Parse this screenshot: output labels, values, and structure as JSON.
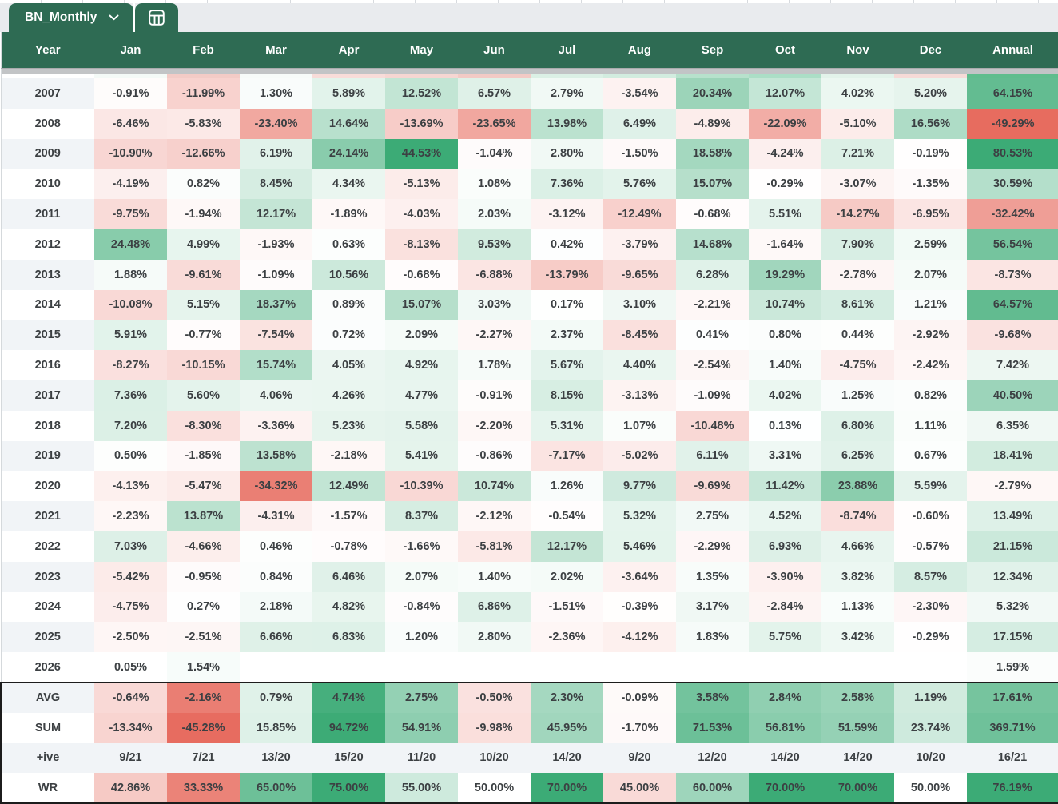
{
  "tab_bar": {
    "sheet_tab": {
      "label": "BN_Monthly",
      "dropdown_icon": "chevron-down-icon"
    },
    "calculator_tab": {
      "icon": "calculator-icon"
    }
  },
  "colors": {
    "header_green": "#2e6b53",
    "positive_end": "#3cab76",
    "negative_end": "#e76a5d",
    "row_stripe": "#f1f4f7",
    "divider_gray": "#c2c4c6",
    "cell_text": "#3c4043",
    "summary_outline": "#1c1c1c"
  },
  "table": {
    "columns": [
      "Year",
      "Jan",
      "Feb",
      "Mar",
      "Apr",
      "May",
      "Jun",
      "Jul",
      "Aug",
      "Sep",
      "Oct",
      "Nov",
      "Dec",
      "Annual"
    ],
    "partial_row_colors": [
      "#ffffff",
      "#f4faf7",
      "#f3cbc6",
      "#f7fbf9",
      "#f8dcd9",
      "#f6d6d2",
      "#f2cac5",
      "#dbf0e5",
      "#d2ecdf",
      "#b7e1cc",
      "#abdec6",
      "#e2f3ea",
      "#f6dad7",
      "#5fbd8d"
    ],
    "rows": [
      {
        "label": "2007",
        "type": "year",
        "cells": [
          "-0.91%",
          "-11.99%",
          "1.30%",
          "5.89%",
          "12.52%",
          "6.57%",
          "2.79%",
          "-3.54%",
          "20.34%",
          "12.07%",
          "4.02%",
          "5.20%",
          "64.15%"
        ]
      },
      {
        "label": "2008",
        "type": "year",
        "cells": [
          "-6.46%",
          "-5.83%",
          "-23.40%",
          "14.64%",
          "-13.69%",
          "-23.65%",
          "13.98%",
          "6.49%",
          "-4.89%",
          "-22.09%",
          "-5.10%",
          "16.56%",
          "-49.29%"
        ]
      },
      {
        "label": "2009",
        "type": "year",
        "cells": [
          "-10.90%",
          "-12.66%",
          "6.19%",
          "24.14%",
          "44.53%",
          "-1.04%",
          "2.80%",
          "-1.50%",
          "18.58%",
          "-4.24%",
          "7.21%",
          "-0.19%",
          "80.53%"
        ]
      },
      {
        "label": "2010",
        "type": "year",
        "cells": [
          "-4.19%",
          "0.82%",
          "8.45%",
          "4.34%",
          "-5.13%",
          "1.08%",
          "7.36%",
          "5.76%",
          "15.07%",
          "-0.29%",
          "-3.07%",
          "-1.35%",
          "30.59%"
        ]
      },
      {
        "label": "2011",
        "type": "year",
        "cells": [
          "-9.75%",
          "-1.94%",
          "12.17%",
          "-1.89%",
          "-4.03%",
          "2.03%",
          "-3.12%",
          "-12.49%",
          "-0.68%",
          "5.51%",
          "-14.27%",
          "-6.95%",
          "-32.42%"
        ]
      },
      {
        "label": "2012",
        "type": "year",
        "cells": [
          "24.48%",
          "4.99%",
          "-1.93%",
          "0.63%",
          "-8.13%",
          "9.53%",
          "0.42%",
          "-3.79%",
          "14.68%",
          "-1.64%",
          "7.90%",
          "2.59%",
          "56.54%"
        ]
      },
      {
        "label": "2013",
        "type": "year",
        "cells": [
          "1.88%",
          "-9.61%",
          "-1.09%",
          "10.56%",
          "-0.68%",
          "-6.88%",
          "-13.79%",
          "-9.65%",
          "6.28%",
          "19.29%",
          "-2.78%",
          "2.07%",
          "-8.73%"
        ]
      },
      {
        "label": "2014",
        "type": "year",
        "cells": [
          "-10.08%",
          "5.15%",
          "18.37%",
          "0.89%",
          "15.07%",
          "3.03%",
          "0.17%",
          "3.10%",
          "-2.21%",
          "10.74%",
          "8.61%",
          "1.21%",
          "64.57%"
        ]
      },
      {
        "label": "2015",
        "type": "year",
        "cells": [
          "5.91%",
          "-0.77%",
          "-7.54%",
          "0.72%",
          "2.09%",
          "-2.27%",
          "2.37%",
          "-8.45%",
          "0.41%",
          "0.80%",
          "0.44%",
          "-2.92%",
          "-9.68%"
        ]
      },
      {
        "label": "2016",
        "type": "year",
        "cells": [
          "-8.27%",
          "-10.15%",
          "15.74%",
          "4.05%",
          "4.92%",
          "1.78%",
          "5.67%",
          "4.40%",
          "-2.54%",
          "1.40%",
          "-4.75%",
          "-2.42%",
          "7.42%"
        ]
      },
      {
        "label": "2017",
        "type": "year",
        "cells": [
          "7.36%",
          "5.60%",
          "4.06%",
          "4.26%",
          "4.77%",
          "-0.91%",
          "8.15%",
          "-3.13%",
          "-1.09%",
          "4.02%",
          "1.25%",
          "0.82%",
          "40.50%"
        ]
      },
      {
        "label": "2018",
        "type": "year",
        "cells": [
          "7.20%",
          "-8.30%",
          "-3.36%",
          "5.23%",
          "5.58%",
          "-2.20%",
          "5.31%",
          "1.07%",
          "-10.48%",
          "0.13%",
          "6.80%",
          "1.11%",
          "6.35%"
        ]
      },
      {
        "label": "2019",
        "type": "year",
        "cells": [
          "0.50%",
          "-1.85%",
          "13.58%",
          "-2.18%",
          "5.41%",
          "-0.86%",
          "-7.17%",
          "-5.02%",
          "6.11%",
          "3.31%",
          "6.25%",
          "0.67%",
          "18.41%"
        ]
      },
      {
        "label": "2020",
        "type": "year",
        "cells": [
          "-4.13%",
          "-5.47%",
          "-34.32%",
          "12.49%",
          "-10.39%",
          "10.74%",
          "1.26%",
          "9.77%",
          "-9.69%",
          "11.42%",
          "23.88%",
          "5.59%",
          "-2.79%"
        ]
      },
      {
        "label": "2021",
        "type": "year",
        "cells": [
          "-2.23%",
          "13.87%",
          "-4.31%",
          "-1.57%",
          "8.37%",
          "-2.12%",
          "-0.54%",
          "5.32%",
          "2.75%",
          "4.52%",
          "-8.74%",
          "-0.60%",
          "13.49%"
        ]
      },
      {
        "label": "2022",
        "type": "year",
        "cells": [
          "7.03%",
          "-4.66%",
          "0.46%",
          "-0.78%",
          "-1.66%",
          "-5.81%",
          "12.17%",
          "5.46%",
          "-2.29%",
          "6.93%",
          "4.66%",
          "-0.57%",
          "21.15%"
        ]
      },
      {
        "label": "2023",
        "type": "year",
        "cells": [
          "-5.42%",
          "-0.95%",
          "0.84%",
          "6.46%",
          "2.07%",
          "1.40%",
          "2.02%",
          "-3.64%",
          "1.35%",
          "-3.90%",
          "3.82%",
          "8.57%",
          "12.34%"
        ]
      },
      {
        "label": "2024",
        "type": "year",
        "cells": [
          "-4.75%",
          "0.27%",
          "2.18%",
          "4.82%",
          "-0.84%",
          "6.86%",
          "-1.51%",
          "-0.39%",
          "3.17%",
          "-2.84%",
          "1.13%",
          "-2.30%",
          "5.32%"
        ]
      },
      {
        "label": "2025",
        "type": "year",
        "cells": [
          "-2.50%",
          "-2.51%",
          "6.66%",
          "6.83%",
          "1.20%",
          "2.80%",
          "-2.36%",
          "-4.12%",
          "1.83%",
          "5.75%",
          "3.42%",
          "-0.29%",
          "17.15%"
        ]
      },
      {
        "label": "2026",
        "type": "year",
        "cells": [
          "0.05%",
          "1.54%",
          "",
          "",
          "",
          "",
          "",
          "",
          "",
          "",
          "",
          "",
          "1.59%"
        ]
      },
      {
        "label": "AVG",
        "type": "avg",
        "cells": [
          "-0.64%",
          "-2.16%",
          "0.79%",
          "4.74%",
          "2.75%",
          "-0.50%",
          "2.30%",
          "-0.09%",
          "3.58%",
          "2.84%",
          "2.58%",
          "1.19%",
          "17.61%"
        ]
      },
      {
        "label": "SUM",
        "type": "sum",
        "cells": [
          "-13.34%",
          "-45.28%",
          "15.85%",
          "94.72%",
          "54.91%",
          "-9.98%",
          "45.95%",
          "-1.70%",
          "71.53%",
          "56.81%",
          "51.59%",
          "23.74%",
          "369.71%"
        ]
      },
      {
        "label": "+ive",
        "type": "pos_count",
        "cells": [
          "9/21",
          "7/21",
          "13/20",
          "15/20",
          "11/20",
          "10/20",
          "14/20",
          "9/20",
          "12/20",
          "14/20",
          "14/20",
          "10/20",
          "16/21"
        ]
      },
      {
        "label": "WR",
        "type": "wr",
        "cells": [
          "42.86%",
          "33.33%",
          "65.00%",
          "75.00%",
          "55.00%",
          "50.00%",
          "70.00%",
          "45.00%",
          "60.00%",
          "70.00%",
          "70.00%",
          "50.00%",
          "76.19%"
        ]
      }
    ]
  }
}
